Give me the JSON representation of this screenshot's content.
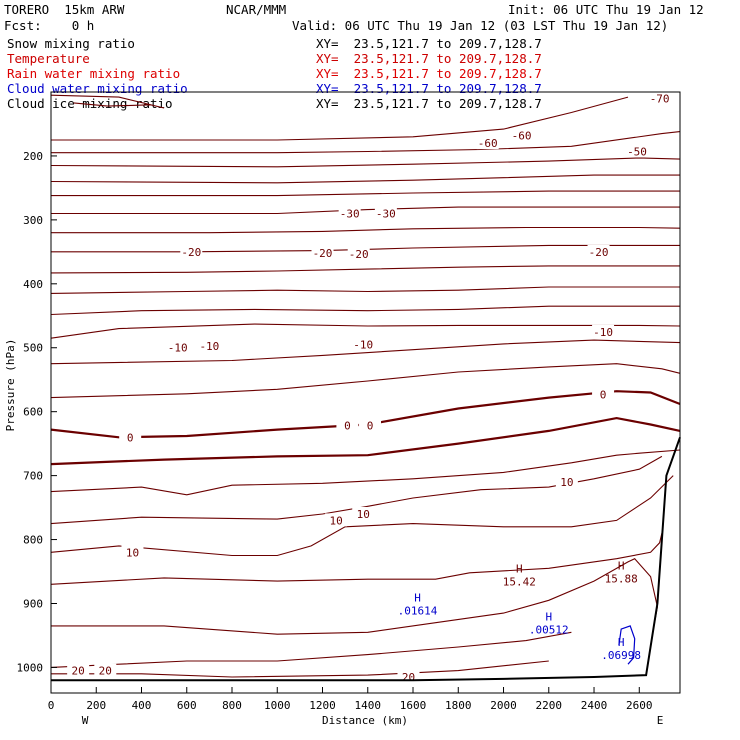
{
  "header": {
    "model": "TORERO  15km ARW",
    "center": "NCAR/MMM",
    "init": "Init: 06 UTC Thu 19 Jan 12",
    "fcst": "Fcst:    0 h",
    "valid": "Valid: 06 UTC Thu 19 Jan 12 (03 LST Thu 19 Jan 12)"
  },
  "legend": [
    {
      "label": "Snow mixing ratio",
      "xy": "XY=  23.5,121.7 to 209.7,128.7",
      "color": "#000000"
    },
    {
      "label": "Temperature",
      "xy": "XY=  23.5,121.7 to 209.7,128.7",
      "color": "#cc0000"
    },
    {
      "label": "Rain water mixing ratio",
      "xy": "XY=  23.5,121.7 to 209.7,128.7",
      "color": "#dd0000"
    },
    {
      "label": "Cloud water mixing ratio",
      "xy": "XY=  23.5,121.7 to 209.7,128.7",
      "color": "#0000cc"
    },
    {
      "label": "Cloud ice mixing ratio",
      "xy": "XY=  23.5,121.7 to 209.7,128.7",
      "color": "#000000"
    }
  ],
  "colors": {
    "contour": "#6b0000",
    "cloud_water": "#0000cc",
    "terrain": "#000000"
  },
  "chart_data": {
    "type": "contour-cross-section",
    "xlabel": "Distance (km)",
    "ylabel": "Pressure (hPa)",
    "xlim": [
      0,
      2780
    ],
    "ylim": [
      1040,
      100
    ],
    "xticks": [
      0,
      200,
      400,
      600,
      800,
      1000,
      1200,
      1400,
      1600,
      1800,
      2000,
      2200,
      2400,
      2600
    ],
    "yticks": [
      200,
      300,
      400,
      500,
      600,
      700,
      800,
      900,
      1000
    ],
    "x_end_labels": {
      "left": "W",
      "right": "E"
    },
    "temperature_contours": [
      {
        "value": -70,
        "points": [
          [
            0,
            105
          ],
          [
            300,
            108
          ],
          [
            500,
            125
          ],
          [
            440,
            120
          ],
          [
            250,
            122
          ],
          [
            100,
            117
          ]
        ]
      },
      {
        "value": -60,
        "points": [
          [
            0,
            175
          ],
          [
            1000,
            175
          ],
          [
            1600,
            170
          ],
          [
            2000,
            158
          ],
          [
            2300,
            132
          ],
          [
            2550,
            108
          ]
        ]
      },
      {
        "value": -50,
        "points": [
          [
            0,
            195
          ],
          [
            1000,
            195
          ],
          [
            1400,
            193
          ],
          [
            1900,
            190
          ],
          [
            2300,
            185
          ],
          [
            2700,
            165
          ],
          [
            2780,
            162
          ]
        ]
      },
      {
        "value": -50,
        "points": [
          [
            0,
            215
          ],
          [
            1000,
            217
          ],
          [
            1600,
            213
          ],
          [
            2200,
            208
          ],
          [
            2600,
            203
          ],
          [
            2780,
            205
          ]
        ]
      },
      {
        "value": -40,
        "points": [
          [
            0,
            240
          ],
          [
            1000,
            242
          ],
          [
            1600,
            238
          ],
          [
            2000,
            234
          ],
          [
            2400,
            230
          ],
          [
            2780,
            230
          ]
        ]
      },
      {
        "value": -40,
        "points": [
          [
            0,
            262
          ],
          [
            1000,
            262
          ],
          [
            1600,
            258
          ],
          [
            2200,
            255
          ],
          [
            2780,
            255
          ]
        ]
      },
      {
        "value": -30,
        "points": [
          [
            0,
            290
          ],
          [
            1000,
            290
          ],
          [
            1400,
            284
          ],
          [
            1800,
            280
          ],
          [
            2200,
            280
          ],
          [
            2780,
            280
          ]
        ]
      },
      {
        "value": -30,
        "points": [
          [
            0,
            320
          ],
          [
            700,
            320
          ],
          [
            1200,
            318
          ],
          [
            1600,
            314
          ],
          [
            2100,
            312
          ],
          [
            2600,
            312
          ],
          [
            2780,
            313
          ]
        ]
      },
      {
        "value": -20,
        "points": [
          [
            0,
            350
          ],
          [
            600,
            350
          ],
          [
            1200,
            348
          ],
          [
            1600,
            344
          ],
          [
            2200,
            340
          ],
          [
            2780,
            340
          ]
        ]
      },
      {
        "value": -20,
        "points": [
          [
            0,
            383
          ],
          [
            600,
            382
          ],
          [
            1000,
            380
          ],
          [
            1400,
            377
          ],
          [
            1800,
            374
          ],
          [
            2200,
            372
          ],
          [
            2780,
            372
          ]
        ]
      },
      {
        "value": -20,
        "points": [
          [
            0,
            415
          ],
          [
            600,
            412
          ],
          [
            1000,
            410
          ],
          [
            1400,
            412
          ],
          [
            1800,
            410
          ],
          [
            2200,
            405
          ],
          [
            2780,
            405
          ]
        ]
      },
      {
        "value": -10,
        "points": [
          [
            0,
            448
          ],
          [
            400,
            442
          ],
          [
            900,
            440
          ],
          [
            1400,
            442
          ],
          [
            1800,
            440
          ],
          [
            2200,
            435
          ],
          [
            2780,
            435
          ]
        ]
      },
      {
        "value": -10,
        "points": [
          [
            0,
            485
          ],
          [
            300,
            470
          ],
          [
            900,
            463
          ],
          [
            1400,
            466
          ],
          [
            1800,
            465
          ],
          [
            2200,
            465
          ],
          [
            2600,
            465
          ],
          [
            2780,
            466
          ]
        ]
      },
      {
        "value": -10,
        "points": [
          [
            0,
            525
          ],
          [
            800,
            520
          ],
          [
            1200,
            512
          ],
          [
            1600,
            503
          ],
          [
            2000,
            494
          ],
          [
            2400,
            488
          ],
          [
            2600,
            490
          ],
          [
            2780,
            492
          ]
        ]
      },
      {
        "value": -10,
        "points": [
          [
            0,
            578
          ],
          [
            600,
            572
          ],
          [
            1000,
            565
          ],
          [
            1400,
            552
          ],
          [
            1800,
            538
          ],
          [
            2200,
            530
          ],
          [
            2500,
            525
          ],
          [
            2700,
            533
          ],
          [
            2780,
            540
          ]
        ]
      },
      {
        "value": 0,
        "points": [
          [
            0,
            628
          ],
          [
            300,
            640
          ],
          [
            600,
            638
          ],
          [
            1000,
            628
          ],
          [
            1400,
            620
          ],
          [
            1800,
            595
          ],
          [
            2200,
            578
          ],
          [
            2500,
            568
          ],
          [
            2650,
            570
          ],
          [
            2780,
            588
          ]
        ]
      },
      {
        "value": 0,
        "points": [
          [
            0,
            682
          ],
          [
            500,
            675
          ],
          [
            1000,
            670
          ],
          [
            1400,
            668
          ],
          [
            1800,
            650
          ],
          [
            2200,
            630
          ],
          [
            2500,
            610
          ],
          [
            2650,
            620
          ],
          [
            2780,
            630
          ]
        ]
      },
      {
        "value": 10,
        "points": [
          [
            0,
            725
          ],
          [
            400,
            718
          ],
          [
            600,
            730
          ],
          [
            800,
            715
          ],
          [
            1200,
            712
          ],
          [
            1600,
            705
          ],
          [
            2000,
            695
          ],
          [
            2300,
            680
          ],
          [
            2500,
            668
          ],
          [
            2600,
            665
          ],
          [
            2780,
            660
          ]
        ]
      },
      {
        "value": 10,
        "points": [
          [
            0,
            775
          ],
          [
            400,
            765
          ],
          [
            1000,
            768
          ],
          [
            1200,
            760
          ],
          [
            1400,
            748
          ],
          [
            1600,
            735
          ],
          [
            1900,
            722
          ],
          [
            2200,
            718
          ],
          [
            2400,
            705
          ],
          [
            2600,
            690
          ],
          [
            2700,
            670
          ]
        ]
      },
      {
        "value": 10,
        "points": [
          [
            0,
            820
          ],
          [
            300,
            810
          ],
          [
            800,
            825
          ],
          [
            1000,
            825
          ],
          [
            1150,
            810
          ],
          [
            1300,
            780
          ],
          [
            1600,
            775
          ],
          [
            2000,
            780
          ],
          [
            2300,
            780
          ],
          [
            2500,
            770
          ],
          [
            2650,
            735
          ],
          [
            2750,
            700
          ]
        ]
      },
      {
        "value": 20,
        "points": [
          [
            0,
            870
          ],
          [
            500,
            860
          ],
          [
            1000,
            865
          ],
          [
            1400,
            862
          ],
          [
            1700,
            862
          ],
          [
            1850,
            852
          ],
          [
            2200,
            845
          ],
          [
            2500,
            830
          ],
          [
            2650,
            820
          ],
          [
            2690,
            805
          ],
          [
            2700,
            790
          ]
        ]
      },
      {
        "value": 20,
        "points": [
          [
            0,
            935
          ],
          [
            500,
            935
          ],
          [
            1000,
            948
          ],
          [
            1400,
            945
          ],
          [
            1700,
            930
          ],
          [
            2000,
            915
          ],
          [
            2200,
            895
          ],
          [
            2400,
            865
          ],
          [
            2550,
            835
          ],
          [
            2580,
            830
          ],
          [
            2650,
            858
          ],
          [
            2680,
            905
          ],
          [
            2660,
            945
          ]
        ]
      },
      {
        "value": 20,
        "points": [
          [
            0,
            1000
          ],
          [
            300,
            995
          ],
          [
            600,
            990
          ],
          [
            1000,
            990
          ],
          [
            1400,
            980
          ],
          [
            1800,
            968
          ],
          [
            2100,
            958
          ],
          [
            2300,
            945
          ]
        ]
      },
      {
        "value": 20,
        "points": [
          [
            0,
            1010
          ],
          [
            400,
            1010
          ],
          [
            800,
            1015
          ],
          [
            1400,
            1012
          ],
          [
            1800,
            1005
          ],
          [
            2200,
            990
          ]
        ]
      }
    ],
    "contour_labels": [
      {
        "text": "-70",
        "x": 2690,
        "y": 110
      },
      {
        "text": "-60",
        "x": 1930,
        "y": 180
      },
      {
        "text": "-60",
        "x": 2080,
        "y": 168
      },
      {
        "text": "-50",
        "x": 2590,
        "y": 193
      },
      {
        "text": "-30",
        "x": 1320,
        "y": 290
      },
      {
        "text": "-30",
        "x": 1480,
        "y": 290
      },
      {
        "text": "-20",
        "x": 620,
        "y": 350
      },
      {
        "text": "-20",
        "x": 1200,
        "y": 352
      },
      {
        "text": "-20",
        "x": 1360,
        "y": 353
      },
      {
        "text": "-20",
        "x": 2420,
        "y": 350
      },
      {
        "text": "-10",
        "x": 560,
        "y": 500
      },
      {
        "text": "-10",
        "x": 700,
        "y": 497
      },
      {
        "text": "-10",
        "x": 1380,
        "y": 495
      },
      {
        "text": "-10",
        "x": 2440,
        "y": 475
      },
      {
        "text": "0",
        "x": 350,
        "y": 640
      },
      {
        "text": "0",
        "x": 1310,
        "y": 622
      },
      {
        "text": "0",
        "x": 1410,
        "y": 622
      },
      {
        "text": "0",
        "x": 2440,
        "y": 573
      },
      {
        "text": "10",
        "x": 2280,
        "y": 710
      },
      {
        "text": "10",
        "x": 1260,
        "y": 770
      },
      {
        "text": "10",
        "x": 1380,
        "y": 760
      },
      {
        "text": "10",
        "x": 360,
        "y": 820
      },
      {
        "text": "20",
        "x": 120,
        "y": 1005
      },
      {
        "text": "20",
        "x": 240,
        "y": 1005
      },
      {
        "text": "20",
        "x": 1580,
        "y": 1015
      }
    ],
    "highs": [
      {
        "label": "H",
        "value": "15.42",
        "x": 2070,
        "y": 855,
        "color": "#6b0000"
      },
      {
        "label": "H",
        "value": "15.88",
        "x": 2520,
        "y": 850,
        "color": "#6b0000"
      },
      {
        "label": "H",
        "value": ".01614",
        "x": 1620,
        "y": 900,
        "color": "#0000cc"
      },
      {
        "label": "H",
        "value": ".00512",
        "x": 2200,
        "y": 930,
        "color": "#0000cc"
      },
      {
        "label": "H",
        "value": ".06998",
        "x": 2520,
        "y": 970,
        "color": "#0000cc"
      }
    ],
    "cloud_water_contours": [
      {
        "points": [
          [
            2510,
            965
          ],
          [
            2520,
            940
          ],
          [
            2560,
            935
          ],
          [
            2580,
            955
          ],
          [
            2575,
            985
          ],
          [
            2550,
            995
          ]
        ]
      }
    ],
    "terrain": [
      [
        0,
        1020
      ],
      [
        400,
        1020
      ],
      [
        1000,
        1020
      ],
      [
        1600,
        1020
      ],
      [
        2000,
        1018
      ],
      [
        2400,
        1015
      ],
      [
        2630,
        1012
      ],
      [
        2680,
        900
      ],
      [
        2720,
        700
      ],
      [
        2780,
        640
      ]
    ]
  }
}
